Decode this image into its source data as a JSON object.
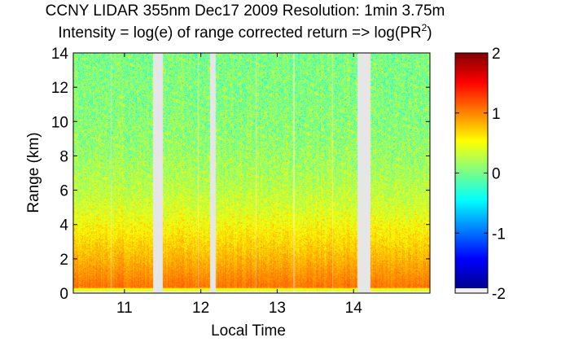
{
  "chart_data": {
    "type": "heatmap",
    "title_line1": "CCNY LIDAR 355nm Dec17 2009 Resolution: 1min 3.75m",
    "title_line2_prefix": "Intensity = log(e) of range corrected return => log(PR",
    "title_line2_superscript": "2",
    "title_line2_suffix": ")",
    "xlabel": "Local Time",
    "ylabel": "Range (km)",
    "xlim": [
      10.33,
      15.0
    ],
    "ylim": [
      0,
      14
    ],
    "x_ticks": [
      11,
      12,
      13,
      14
    ],
    "x_tick_labels": [
      "11",
      "12",
      "13",
      "14"
    ],
    "y_ticks": [
      0,
      2,
      4,
      6,
      8,
      10,
      12,
      14
    ],
    "y_tick_labels": [
      "0",
      "2",
      "4",
      "6",
      "8",
      "10",
      "12",
      "14"
    ],
    "colorbar": {
      "range": [
        -2,
        2
      ],
      "ticks": [
        -2,
        -1,
        0,
        1,
        2
      ],
      "tick_labels": [
        "-2",
        "-1",
        "0",
        "1",
        "2"
      ],
      "colormap": "jet"
    },
    "data_gaps_hours": [
      [
        11.38,
        11.5
      ],
      [
        12.12,
        12.2
      ],
      [
        14.05,
        14.22
      ]
    ],
    "missing_profile_hours": [
      10.83,
      11.97,
      12.72,
      13.22,
      13.73
    ],
    "intensity_profile": [
      {
        "range_km": 0.0,
        "value": -0.1
      },
      {
        "range_km": 0.12,
        "value": 0.3
      },
      {
        "range_km": 0.35,
        "value": 1.05
      },
      {
        "range_km": 1.0,
        "value": 0.95
      },
      {
        "range_km": 2.0,
        "value": 0.8
      },
      {
        "range_km": 3.0,
        "value": 0.65
      },
      {
        "range_km": 4.0,
        "value": 0.5
      },
      {
        "range_km": 5.0,
        "value": 0.35
      },
      {
        "range_km": 6.0,
        "value": 0.25
      },
      {
        "range_km": 8.0,
        "value": 0.12
      },
      {
        "range_km": 10.0,
        "value": 0.05
      },
      {
        "range_km": 12.0,
        "value": 0.02
      },
      {
        "range_km": 14.0,
        "value": 0.0
      }
    ],
    "noise_colors": {
      "gap_fill": "#e6e6e6",
      "below_min": "#f0f0f0"
    }
  }
}
